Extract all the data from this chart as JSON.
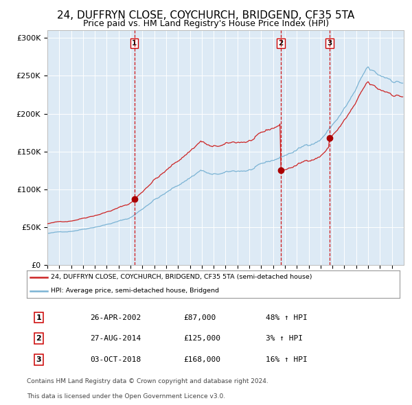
{
  "title": "24, DUFFRYN CLOSE, COYCHURCH, BRIDGEND, CF35 5TA",
  "subtitle": "Price paid vs. HM Land Registry's House Price Index (HPI)",
  "title_fontsize": 11,
  "subtitle_fontsize": 9,
  "hpi_color": "#7ab3d4",
  "property_color": "#cc2222",
  "dot_color": "#aa0000",
  "bg_color": "#ddeaf5",
  "grid_color": "#ffffff",
  "sale_dates": [
    "2002-04-26",
    "2014-08-27",
    "2018-10-03"
  ],
  "sale_prices": [
    87000,
    125000,
    168000
  ],
  "sale_labels": [
    "1",
    "2",
    "3"
  ],
  "legend_property": "24, DUFFRYN CLOSE, COYCHURCH, BRIDGEND, CF35 5TA (semi-detached house)",
  "legend_hpi": "HPI: Average price, semi-detached house, Bridgend",
  "table_rows": [
    [
      "1",
      "26-APR-2002",
      "£87,000",
      "48% ↑ HPI"
    ],
    [
      "2",
      "27-AUG-2014",
      "£125,000",
      "3% ↑ HPI"
    ],
    [
      "3",
      "03-OCT-2018",
      "£168,000",
      "16% ↑ HPI"
    ]
  ],
  "footer": "Contains HM Land Registry data © Crown copyright and database right 2024.\nThis data is licensed under the Open Government Licence v3.0.",
  "ylim": [
    0,
    310000
  ],
  "yticks": [
    0,
    50000,
    100000,
    150000,
    200000,
    250000,
    300000
  ],
  "ytick_labels": [
    "£0",
    "£50K",
    "£100K",
    "£150K",
    "£200K",
    "£250K",
    "£300K"
  ]
}
